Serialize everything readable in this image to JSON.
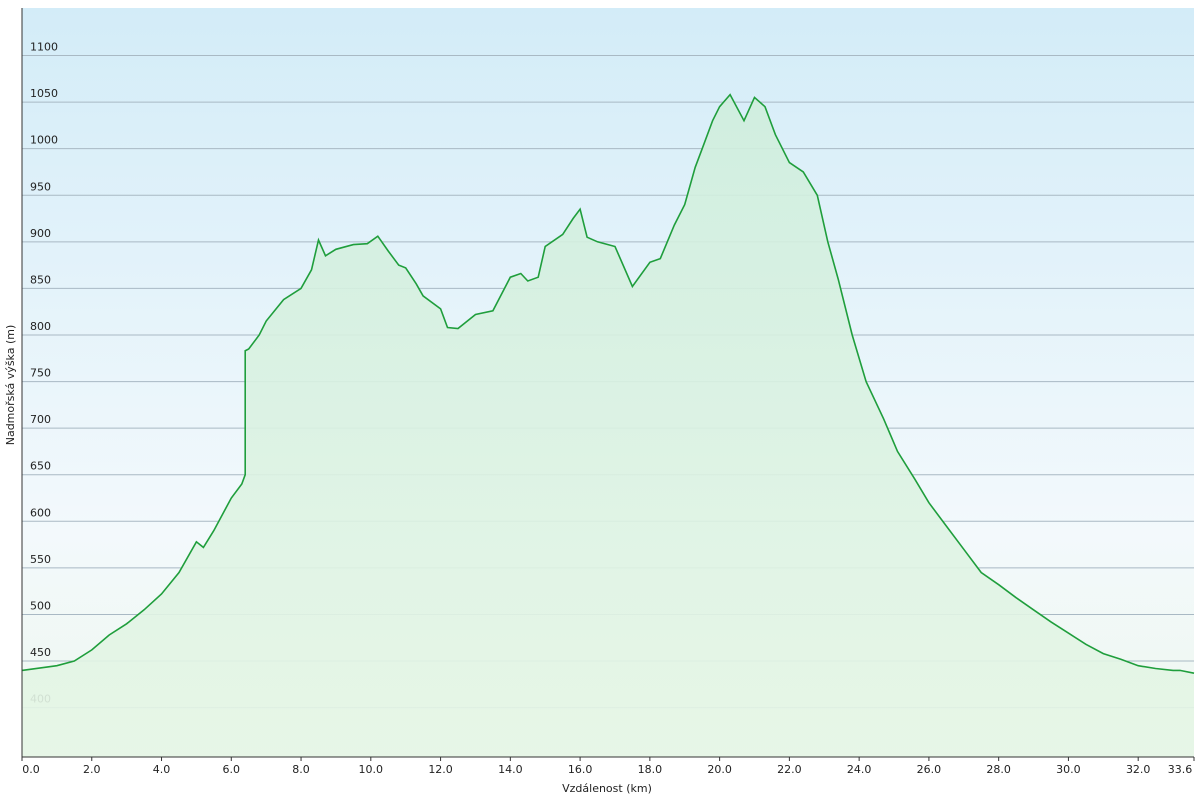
{
  "chart_data": {
    "type": "area",
    "x_label": "Vzdálenost  (km)",
    "y_label": "Nadmořská výška (m)",
    "x": [
      0,
      1.0,
      1.5,
      2.0,
      2.5,
      3.0,
      3.5,
      4.0,
      4.5,
      5.0,
      5.2,
      5.5,
      6.0,
      6.3,
      6.4,
      6.4,
      6.5,
      6.8,
      7.0,
      7.5,
      8.0,
      8.3,
      8.5,
      8.7,
      9.0,
      9.5,
      9.9,
      10.2,
      10.5,
      10.8,
      11.0,
      11.3,
      11.5,
      12.0,
      12.2,
      12.5,
      13.0,
      13.5,
      14.0,
      14.3,
      14.5,
      14.8,
      15.0,
      15.5,
      15.8,
      16.0,
      16.2,
      16.5,
      17.0,
      17.5,
      18.0,
      18.3,
      18.7,
      19.0,
      19.3,
      19.5,
      19.8,
      20.0,
      20.3,
      20.7,
      21.0,
      21.3,
      21.6,
      22.0,
      22.4,
      22.8,
      23.1,
      23.4,
      23.8,
      24.2,
      24.7,
      25.1,
      25.6,
      26.0,
      26.5,
      27.0,
      27.5,
      28.0,
      28.5,
      29.0,
      29.5,
      30.0,
      30.5,
      31.0,
      31.5,
      32.0,
      32.5,
      33.0,
      33.2,
      33.6
    ],
    "series": [
      {
        "name": "Nadmořská výška",
        "color": "#1f9e3c",
        "values": [
          440,
          445,
          450,
          462,
          478,
          490,
          505,
          522,
          545,
          578,
          572,
          590,
          625,
          640,
          650,
          783,
          785,
          800,
          815,
          838,
          850,
          870,
          902,
          885,
          892,
          897,
          898,
          906,
          890,
          875,
          872,
          855,
          842,
          828,
          808,
          807,
          822,
          826,
          862,
          866,
          858,
          862,
          895,
          908,
          925,
          935,
          905,
          900,
          895,
          852,
          878,
          882,
          918,
          940,
          980,
          1000,
          1030,
          1045,
          1058,
          1030,
          1055,
          1045,
          1015,
          985,
          975,
          950,
          900,
          860,
          800,
          750,
          710,
          675,
          645,
          620,
          595,
          570,
          545,
          532,
          518,
          505,
          492,
          480,
          468,
          458,
          452,
          445,
          442,
          440,
          440,
          437
        ]
      }
    ],
    "xlim": [
      0,
      33.6
    ],
    "ylim": [
      347,
      1151
    ],
    "xticks": [
      {
        "value": 0,
        "label": "0.0"
      },
      {
        "value": 2,
        "label": "2.0"
      },
      {
        "value": 4,
        "label": "4.0"
      },
      {
        "value": 6,
        "label": "6.0"
      },
      {
        "value": 8,
        "label": "8.0"
      },
      {
        "value": 10,
        "label": "10.0"
      },
      {
        "value": 12,
        "label": "12.0"
      },
      {
        "value": 14,
        "label": "14.0"
      },
      {
        "value": 16,
        "label": "16.0"
      },
      {
        "value": 18,
        "label": "18.0"
      },
      {
        "value": 20,
        "label": "20.0"
      },
      {
        "value": 22,
        "label": "22.0"
      },
      {
        "value": 24,
        "label": "24.0"
      },
      {
        "value": 26,
        "label": "26.0"
      },
      {
        "value": 28,
        "label": "28.0"
      },
      {
        "value": 30,
        "label": "30.0"
      },
      {
        "value": 32,
        "label": "32.0"
      },
      33.6
    ],
    "yticks": [
      400,
      450,
      500,
      550,
      600,
      650,
      700,
      750,
      800,
      850,
      900,
      950,
      1000,
      1050,
      1100
    ],
    "grid": true
  }
}
